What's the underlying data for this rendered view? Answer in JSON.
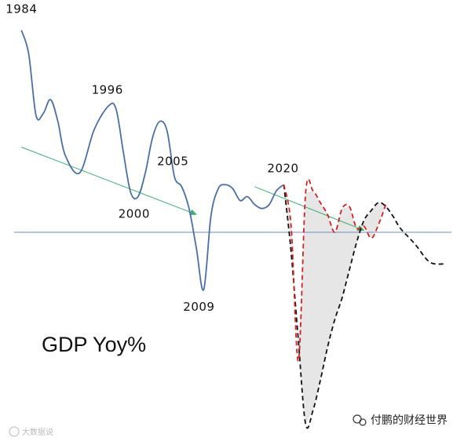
{
  "chart_data": {
    "type": "line",
    "title": "GDP Yoy%",
    "colors": {
      "history": "#4a6fa5",
      "baseline": "#6f8fb5",
      "trend": "#3fae73",
      "scenario_v": "#d42020",
      "scenario_deep": "#111111",
      "shade": "#e6e6e6"
    },
    "year_labels": [
      "1984",
      "1996",
      "2000",
      "2005",
      "2009",
      "2020"
    ],
    "history_series": {
      "name": "",
      "x": [
        1984,
        1985,
        1986,
        1987,
        1988,
        1989,
        1990,
        1992,
        1994,
        1996,
        1997,
        1998,
        1999,
        2000,
        2001,
        2002,
        2003,
        2004,
        2005,
        2006,
        2007,
        2008,
        2009,
        2010,
        2011,
        2012,
        2013,
        2014,
        2015,
        2016,
        2017,
        2018,
        2019,
        2020
      ],
      "y": [
        10.2,
        9.0,
        5.9,
        6.0,
        6.7,
        5.6,
        3.9,
        3.0,
        5.2,
        6.4,
        6.2,
        4.0,
        2.0,
        1.8,
        3.0,
        4.8,
        5.6,
        5.1,
        2.8,
        2.3,
        1.2,
        -0.8,
        -2.9,
        0.8,
        2.2,
        2.4,
        2.2,
        1.6,
        1.8,
        1.4,
        1.2,
        1.4,
        2.1,
        2.4
      ]
    },
    "scenario_v_shape": {
      "name": "",
      "x": [
        2020,
        2021,
        2022,
        2023,
        2024,
        2025,
        2026,
        2027,
        2028,
        2029,
        2030,
        2031,
        2032,
        2033,
        2034
      ],
      "y": [
        2.4,
        0.3,
        -6.5,
        2.0,
        2.1,
        1.5,
        0.9,
        0.0,
        1.2,
        1.3,
        0.2,
        0.3,
        -0.3,
        0.4,
        1.4
      ]
    },
    "scenario_deep_recession": {
      "name": "",
      "x": [
        2020,
        2021,
        2022,
        2023,
        2024,
        2025,
        2026,
        2027,
        2028,
        2029,
        2030,
        2031,
        2032,
        2033,
        2034,
        2035,
        2036,
        2038,
        2040,
        2042
      ],
      "y": [
        2.4,
        -1.0,
        -5.5,
        -9.7,
        -9.0,
        -7.5,
        -5.8,
        -4.4,
        -3.3,
        -1.9,
        -0.5,
        0.6,
        1.1,
        1.5,
        1.3,
        0.8,
        0.2,
        -0.6,
        -1.5,
        -1.6
      ]
    },
    "trend_arrows": [
      {
        "x": [
          1984,
          2008
        ],
        "y": [
          4.3,
          0.9
        ]
      },
      {
        "x": [
          2016,
          2031
        ],
        "y": [
          2.3,
          0.1
        ]
      }
    ],
    "baseline": 0,
    "xlim": [
      1983,
      2043
    ],
    "ylim": [
      -10.5,
      10.5
    ]
  },
  "labels": {
    "metric": "GDP Yoy%",
    "watermark_right": "付鹏的财经世界",
    "watermark_left": "大数据说"
  }
}
